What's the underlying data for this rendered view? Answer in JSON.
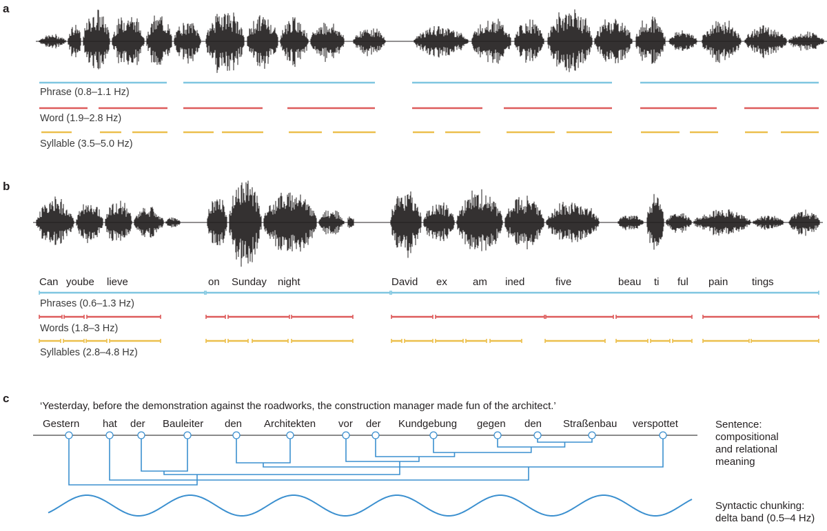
{
  "colors": {
    "phrase": "#7ec6e0",
    "word": "#dd5b5b",
    "syllable": "#ecbf4c",
    "tree": "#3a8fcf",
    "wave": "#3a8fcf",
    "waveform": "#231f20",
    "axis": "#8a8a8a"
  },
  "panel_a": {
    "letter": "a",
    "bands": [
      {
        "key": "phrase",
        "label": "Phrase (0.8–1.1 Hz)"
      },
      {
        "key": "word",
        "label": "Word (1.9–2.8 Hz)"
      },
      {
        "key": "syllable",
        "label": "Syllable (3.5–5.0 Hz)"
      }
    ]
  },
  "panel_b": {
    "letter": "b",
    "words": [
      "Can",
      "yoube",
      "lieve",
      "on",
      "Sunday",
      "night",
      "David",
      "ex",
      "am",
      "ined",
      "five",
      "beau",
      "ti",
      "ful",
      "pain",
      "tings"
    ],
    "bands": [
      {
        "key": "phrase",
        "label": "Phrases (0.6–1.3 Hz)"
      },
      {
        "key": "word",
        "label": "Words (1.8–3 Hz)"
      },
      {
        "key": "syllable",
        "label": "Syllables (2.8–4.8 Hz)"
      }
    ]
  },
  "panel_c": {
    "letter": "c",
    "sentence": "‘Yesterday, before the demonstration against the roadworks, the construction manager  made fun of the architect.’",
    "words": [
      "Gestern",
      "hat",
      "der",
      "Bauleiter",
      "den",
      "Architekten",
      "vor",
      "der",
      "Kundgebung",
      "gegen",
      "den",
      "Straßenbau",
      "verspottet"
    ],
    "sentence_label": [
      "Sentence:",
      "compositional",
      "and relational",
      "meaning"
    ],
    "chunking_label": [
      "Syntactic chunking:",
      "delta band (0.5–4 Hz)"
    ]
  }
}
